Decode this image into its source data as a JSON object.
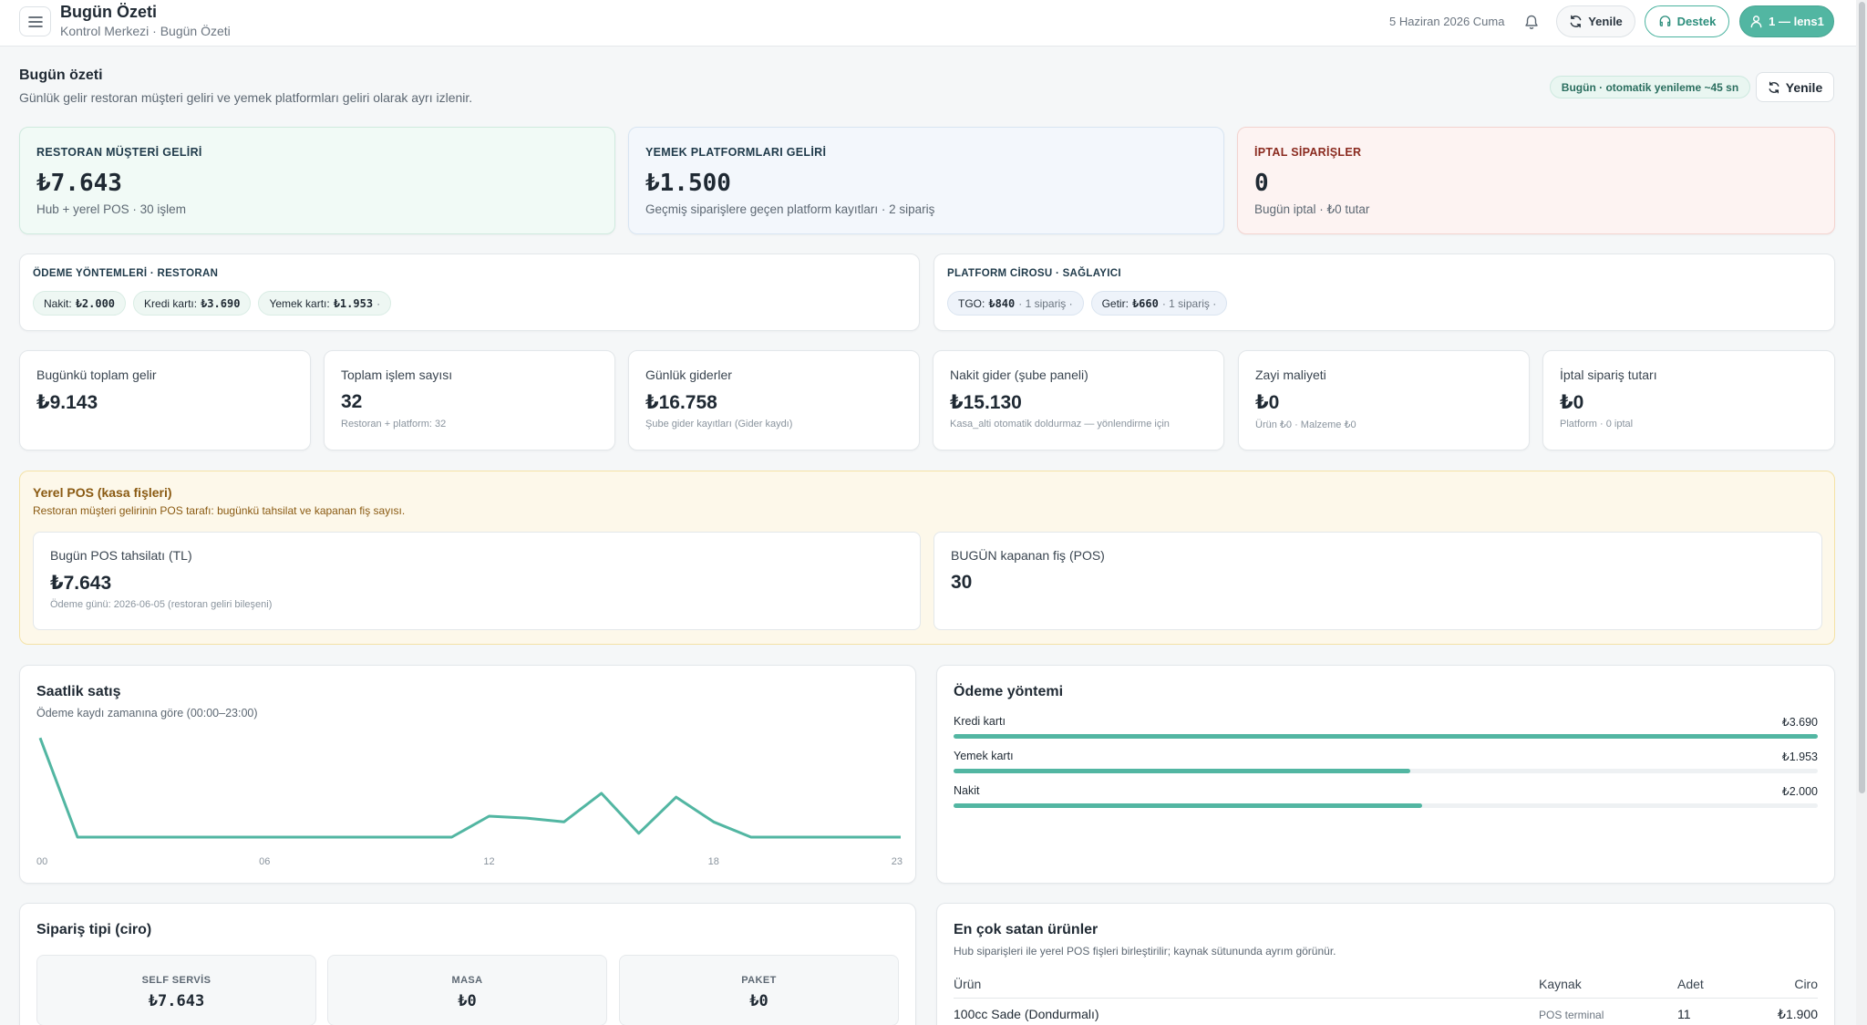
{
  "header": {
    "title": "Bugün Özeti",
    "breadcrumb": "Kontrol Merkezi · Bugün Özeti",
    "date": "5 Haziran 2026 Cuma",
    "refresh_label": "Yenile",
    "support_label": "Destek",
    "user_label": "1 — lens1"
  },
  "section": {
    "title": "Bugün özeti",
    "subtitle": "Günlük gelir restoran müşteri geliri ve yemek platformları geliri olarak ayrı izlenir.",
    "auto_badge": "Bugün · otomatik yenileme ~45 sn",
    "refresh_label": "Yenile"
  },
  "kpis": [
    {
      "label": "RESTORAN MÜŞTERİ GELİRİ",
      "value": "₺7.643",
      "sub": "Hub + yerel POS · 30 işlem"
    },
    {
      "label": "YEMEK PLATFORMLARI GELİRİ",
      "value": "₺1.500",
      "sub": "Geçmiş siparişlere geçen platform kayıtları · 2 sipariş"
    },
    {
      "label": "İPTAL SİPARİŞLER",
      "value": "0",
      "sub": "Bugün iptal · ₺0 tutar"
    }
  ],
  "payment_methods_mini": {
    "title": "ÖDEME YÖNTEMLERİ · RESTORAN",
    "chips": [
      {
        "label": "Nakit:",
        "value": "₺2.000",
        "extra": ""
      },
      {
        "label": "Kredi kartı:",
        "value": "₺3.690",
        "extra": ""
      },
      {
        "label": "Yemek kartı:",
        "value": "₺1.953",
        "extra": "·"
      }
    ]
  },
  "platform_mini": {
    "title": "PLATFORM CİROSU · SAĞLAYICI",
    "chips": [
      {
        "label": "TGO:",
        "value": "₺840",
        "extra": "· 1 sipariş ·"
      },
      {
        "label": "Getir:",
        "value": "₺660",
        "extra": "· 1 sipariş ·"
      }
    ]
  },
  "stats": [
    {
      "label": "Bugünkü toplam gelir",
      "value": "₺9.143",
      "sub": ""
    },
    {
      "label": "Toplam işlem sayısı",
      "value": "32",
      "sub": "Restoran + platform: 32"
    },
    {
      "label": "Günlük giderler",
      "value": "₺16.758",
      "sub": "Şube gider kayıtları (Gider kaydı)"
    },
    {
      "label": "Nakit gider (şube paneli)",
      "value": "₺15.130",
      "sub": "Kasa_alti otomatik doldurmaz — yönlendirme için"
    },
    {
      "label": "Zayi maliyeti",
      "value": "₺0",
      "sub": "Ürün ₺0 · Malzeme ₺0"
    },
    {
      "label": "İptal sipariş tutarı",
      "value": "₺0",
      "sub": "Platform · 0 iptal"
    }
  ],
  "pos": {
    "title": "Yerel POS (kasa fişleri)",
    "subtitle": "Restoran müşteri gelirinin POS tarafı: bugünkü tahsilat ve kapanan fiş sayısı.",
    "collection_label": "Bugün POS tahsilatı (TL)",
    "collection_value": "₺7.643",
    "collection_sub": "Ödeme günü: 2026-06-05 (restoran geliri bileşeni)",
    "receipts_label": "BUGÜN kapanan fiş (POS)",
    "receipts_value": "30"
  },
  "hourly": {
    "title": "Saatlik satış",
    "subtitle": "Ödeme kaydı zamanına göre (00:00–23:00)"
  },
  "chart_data": {
    "type": "line",
    "title": "Saatlik satış",
    "x": [
      "00",
      "01",
      "02",
      "03",
      "04",
      "05",
      "06",
      "07",
      "08",
      "09",
      "10",
      "11",
      "12",
      "13",
      "14",
      "15",
      "16",
      "17",
      "18",
      "19",
      "20",
      "21",
      "22",
      "23"
    ],
    "tick_labels": [
      "00",
      "06",
      "12",
      "18",
      "23"
    ],
    "values": [
      2600,
      0,
      0,
      0,
      0,
      0,
      0,
      0,
      0,
      0,
      0,
      0,
      550,
      500,
      400,
      1150,
      100,
      1050,
      400,
      0,
      0,
      0,
      0,
      0
    ],
    "ylim": [
      0,
      2700
    ],
    "grid": false,
    "color": "#52b6a2"
  },
  "payment": {
    "title": "Ödeme yöntemi",
    "rows": [
      {
        "label": "Kredi kartı",
        "value": "₺3.690",
        "fraction": 1.0
      },
      {
        "label": "Yemek kartı",
        "value": "₺1.953",
        "fraction": 0.529
      },
      {
        "label": "Nakit",
        "value": "₺2.000",
        "fraction": 0.542
      }
    ]
  },
  "order_type": {
    "title": "Sipariş tipi (ciro)",
    "items": [
      {
        "label": "SELF SERVİS",
        "value": "₺7.643"
      },
      {
        "label": "MASA",
        "value": "₺0"
      },
      {
        "label": "PAKET",
        "value": "₺0"
      }
    ]
  },
  "top_products": {
    "title": "En çok satan ürünler",
    "subtitle": "Hub siparişleri ile yerel POS fişleri birleştirilir; kaynak sütununda ayrım görünür.",
    "columns": [
      "Ürün",
      "Kaynak",
      "Adet",
      "Ciro"
    ],
    "rows": [
      {
        "product": "100cc Sade (Dondurmalı)",
        "source": "POS terminal",
        "qty": "11",
        "revenue": "₺1.900"
      }
    ]
  },
  "colors": {
    "accent": "#52b6a2",
    "warning_bg": "#fdf8ea",
    "danger_text": "#8a2a1f"
  }
}
